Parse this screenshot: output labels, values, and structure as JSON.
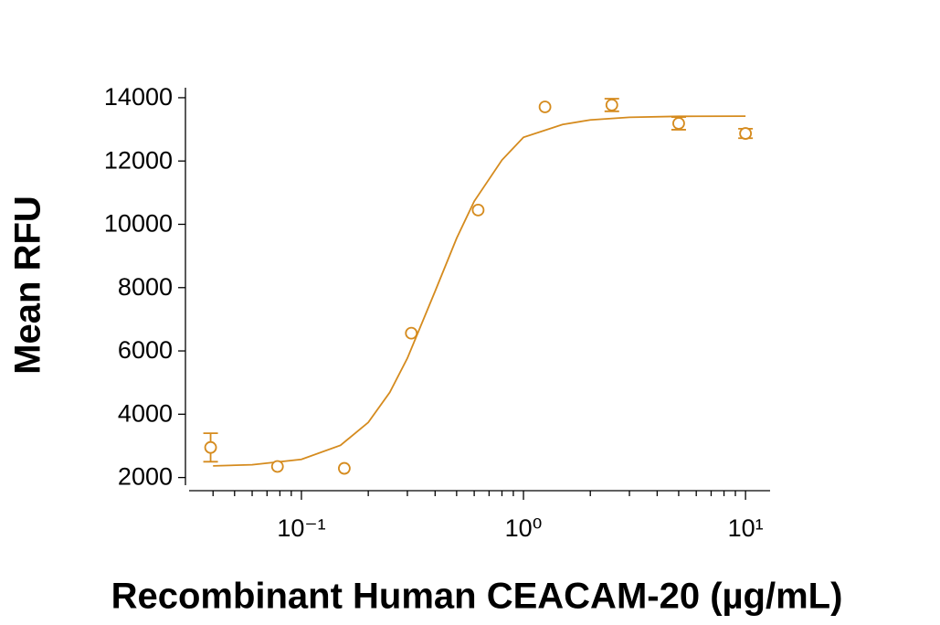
{
  "chart_data": {
    "type": "scatter",
    "xlabel": "Recombinant Human CEACAM-20 (µg/mL)",
    "ylabel": "Mean RFU",
    "color": "#d58b1e",
    "x": [
      0.039,
      0.078,
      0.156,
      0.3125,
      0.625,
      1.25,
      2.5,
      5,
      10
    ],
    "values": [
      2950,
      2350,
      2290,
      6560,
      10450,
      13710,
      13770,
      13190,
      12870
    ],
    "errors": [
      450,
      null,
      null,
      null,
      null,
      null,
      200,
      200,
      150
    ],
    "curve": {
      "x": [
        0.04,
        0.06,
        0.1,
        0.15,
        0.2,
        0.25,
        0.3,
        0.4,
        0.5,
        0.6,
        0.8,
        1,
        1.5,
        2,
        3,
        5,
        10
      ],
      "values": [
        2368,
        2404,
        2574,
        3018,
        3741,
        4691,
        5769,
        7885,
        9560,
        10728,
        12030,
        12750,
        13153,
        13299,
        13381,
        13411,
        13418
      ]
    },
    "xscale": "log",
    "xlim": [
      0.0312,
      12.9
    ],
    "ylim": [
      1700,
      14200
    ],
    "xticks": [
      {
        "value": 0.1,
        "label": "10⁻¹"
      },
      {
        "value": 1,
        "label": "10⁰"
      },
      {
        "value": 10,
        "label": "10¹"
      }
    ],
    "xminorticks": [
      0.04,
      0.05,
      0.06,
      0.07,
      0.08,
      0.09,
      0.2,
      0.3,
      0.4,
      0.5,
      0.6,
      0.7,
      0.8,
      0.9,
      2,
      3,
      4,
      5,
      6,
      7,
      8,
      9
    ],
    "yticks": [
      2000,
      4000,
      6000,
      8000,
      10000,
      12000,
      14000
    ]
  }
}
